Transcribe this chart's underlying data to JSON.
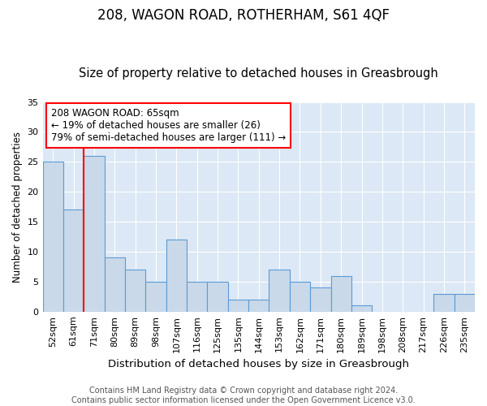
{
  "title": "208, WAGON ROAD, ROTHERHAM, S61 4QF",
  "subtitle": "Size of property relative to detached houses in Greasbrough",
  "xlabel": "Distribution of detached houses by size in Greasbrough",
  "ylabel": "Number of detached properties",
  "categories": [
    "52sqm",
    "61sqm",
    "71sqm",
    "80sqm",
    "89sqm",
    "98sqm",
    "107sqm",
    "116sqm",
    "125sqm",
    "135sqm",
    "144sqm",
    "153sqm",
    "162sqm",
    "171sqm",
    "180sqm",
    "189sqm",
    "198sqm",
    "208sqm",
    "217sqm",
    "226sqm",
    "235sqm"
  ],
  "values": [
    25,
    17,
    26,
    9,
    7,
    5,
    12,
    5,
    5,
    2,
    2,
    7,
    5,
    4,
    6,
    1,
    0,
    0,
    0,
    3,
    3
  ],
  "bar_color": "#c9d9ea",
  "bar_edge_color": "#5b9bd5",
  "bar_edge_width": 0.8,
  "vline_x": 1.5,
  "vline_color": "red",
  "vline_linewidth": 1.5,
  "ylim": [
    0,
    35
  ],
  "yticks": [
    0,
    5,
    10,
    15,
    20,
    25,
    30,
    35
  ],
  "annotation_text": "208 WAGON ROAD: 65sqm\n← 19% of detached houses are smaller (26)\n79% of semi-detached houses are larger (111) →",
  "annotation_box_color": "#ffffff",
  "annotation_box_edgecolor": "red",
  "bg_color": "#dce8f5",
  "grid_color": "#ffffff",
  "footer_text": "Contains HM Land Registry data © Crown copyright and database right 2024.\nContains public sector information licensed under the Open Government Licence v3.0.",
  "title_fontsize": 12,
  "subtitle_fontsize": 10.5,
  "xlabel_fontsize": 9.5,
  "ylabel_fontsize": 8.5,
  "tick_fontsize": 8,
  "annotation_fontsize": 8.5,
  "footer_fontsize": 7
}
